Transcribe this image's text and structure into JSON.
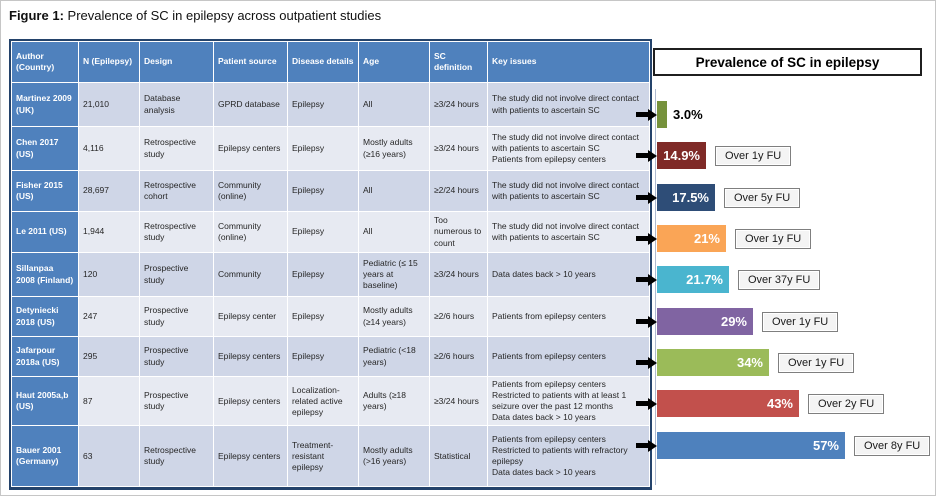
{
  "figure": {
    "label_bold": "Figure 1:",
    "label_rest": " Prevalence of SC in epilepsy across outpatient studies"
  },
  "table": {
    "headers": [
      "Author (Country)",
      "N (Epilepsy)",
      "Design",
      "Patient source",
      "Disease details",
      "Age",
      "SC definition",
      "Key issues"
    ],
    "rows": [
      {
        "author": "Martinez 2009 (UK)",
        "n": "21,010",
        "design": "Database analysis",
        "source": "GPRD database",
        "disease": "Epilepsy",
        "age": "All",
        "sc_definition": "≥3/24 hours",
        "key_issues": [
          "The study did not involve direct contact with patients to ascertain SC"
        ]
      },
      {
        "author": "Chen 2017 (US)",
        "n": "4,116",
        "design": "Retrospective study",
        "source": "Epilepsy centers",
        "disease": "Epilepsy",
        "age": "Mostly adults (≥16 years)",
        "sc_definition": "≥3/24 hours",
        "key_issues": [
          "The study did not involve direct contact with patients to ascertain SC",
          "Patients from epilepsy centers"
        ]
      },
      {
        "author": "Fisher 2015 (US)",
        "n": "28,697",
        "design": "Retrospective cohort",
        "source": "Community (online)",
        "disease": "Epilepsy",
        "age": "All",
        "sc_definition": "≥2/24 hours",
        "key_issues": [
          "The study did not involve direct contact with patients to ascertain SC"
        ]
      },
      {
        "author": "Le 2011 (US)",
        "n": "1,944",
        "design": "Retrospective study",
        "source": "Community (online)",
        "disease": "Epilepsy",
        "age": "All",
        "sc_definition": "Too numerous to count",
        "key_issues": [
          "The study did not involve direct contact with patients to ascertain SC"
        ]
      },
      {
        "author": "Sillanpaa 2008 (Finland)",
        "n": "120",
        "design": "Prospective study",
        "source": "Community",
        "disease": "Epilepsy",
        "age": "Pediatric (≤ 15 years at baseline)",
        "sc_definition": "≥3/24 hours",
        "key_issues": [
          "Data dates back > 10 years"
        ]
      },
      {
        "author": "Detyniecki 2018 (US)",
        "n": "247",
        "design": "Prospective study",
        "source": "Epilepsy center",
        "disease": "Epilepsy",
        "age": "Mostly adults (≥14 years)",
        "sc_definition": "≥2/6 hours",
        "key_issues": [
          "Patients from epilepsy centers"
        ]
      },
      {
        "author": "Jafarpour 2018a (US)",
        "n": "295",
        "design": "Prospective study",
        "source": "Epilepsy centers",
        "disease": "Epilepsy",
        "age": "Pediatric (<18 years)",
        "sc_definition": "≥2/6 hours",
        "key_issues": [
          "Patients from epilepsy centers"
        ]
      },
      {
        "author": "Haut 2005a,b (US)",
        "n": "87",
        "design": "Prospective study",
        "source": "Epilepsy centers",
        "disease": "Localization-related active epilepsy",
        "age": "Adults (≥18 years)",
        "sc_definition": "≥3/24 hours",
        "key_issues": [
          "Patients from epilepsy centers",
          "Restricted to patients with at least 1 seizure over the past 12 months",
          "Data dates back > 10 years"
        ]
      },
      {
        "author": "Bauer 2001 (Germany)",
        "n": "63",
        "design": "Retrospective study",
        "source": "Epilepsy centers",
        "disease": "Treatment-resistant epilepsy",
        "age": "Mostly adults (>16 years)",
        "sc_definition": "Statistical",
        "key_issues": [
          "Patients from epilepsy centers",
          "Restricted to patients with refractory epilepsy",
          "Data dates back > 10 years"
        ]
      }
    ]
  },
  "chart": {
    "title": "Prevalence of SC in epilepsy"
  },
  "chart_data": {
    "type": "bar",
    "orientation": "horizontal",
    "title": "Prevalence of SC in epilepsy",
    "categories": [
      "Martinez 2009 (UK)",
      "Chen 2017 (US)",
      "Fisher 2015 (US)",
      "Le 2011 (US)",
      "Sillanpaa 2008 (Finland)",
      "Detyniecki 2018 (US)",
      "Jafarpour 2018a (US)",
      "Haut 2005a,b (US)",
      "Bauer 2001 (Germany)"
    ],
    "values": [
      3.0,
      14.9,
      17.5,
      21,
      21.7,
      29,
      34,
      43,
      57
    ],
    "value_labels": [
      "3.0%",
      "14.9%",
      "17.5%",
      "21%",
      "21.7%",
      "29%",
      "34%",
      "43%",
      "57%"
    ],
    "followup_labels": [
      "",
      "Over 1y FU",
      "Over 5y FU",
      "Over 1y FU",
      "Over 37y FU",
      "Over 1y FU",
      "Over 1y FU",
      "Over 2y FU",
      "Over 8y FU"
    ],
    "bar_colors": [
      "#76923C",
      "#7F2A27",
      "#2E4D77",
      "#FAA556",
      "#4AB5CF",
      "#8064A2",
      "#9BBB59",
      "#C2504C",
      "#4E81BD"
    ],
    "xlim": [
      0,
      60
    ],
    "grid": false,
    "legend": false
  },
  "colors": {
    "table_header": "#4F81BD",
    "band_dark": "#CFD6E7",
    "band_light": "#E7EAF2",
    "table_border": "#24436B",
    "arrow": "#000000"
  }
}
